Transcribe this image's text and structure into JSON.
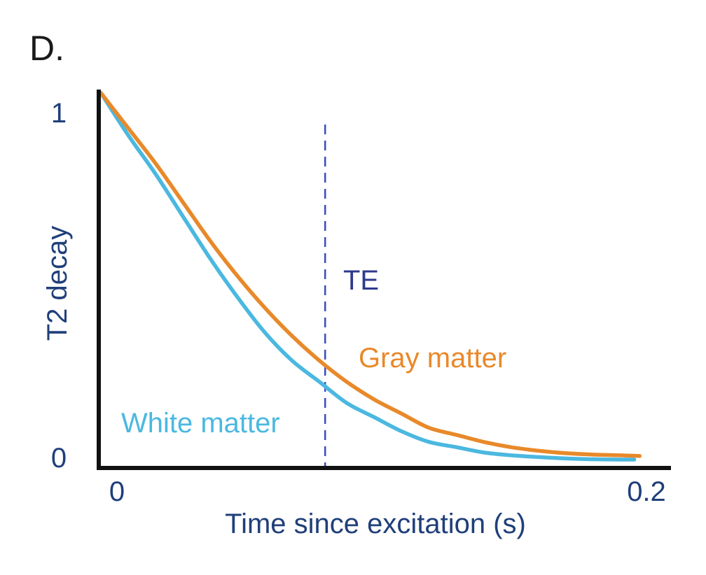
{
  "chart_data": {
    "panel_label": "D.",
    "type": "line",
    "title": "",
    "xlabel": "Time since excitation (s)",
    "ylabel": "T2 decay",
    "xlim": [
      0,
      0.2
    ],
    "ylim": [
      0,
      1
    ],
    "x_ticks": [
      {
        "value": 0,
        "label": "0"
      },
      {
        "value": 0.2,
        "label": "0.2"
      }
    ],
    "y_ticks": [
      {
        "value": 0,
        "label": "0"
      },
      {
        "value": 1,
        "label": "1"
      }
    ],
    "grid": false,
    "series": [
      {
        "name": "White matter",
        "color": "#4bb8e0",
        "x": [
          0,
          0.01,
          0.02,
          0.03,
          0.04,
          0.05,
          0.06,
          0.07,
          0.08,
          0.09,
          0.1,
          0.11,
          0.12,
          0.13,
          0.14,
          0.15,
          0.16,
          0.17,
          0.18,
          0.19,
          0.195
        ],
        "y": [
          1.05,
          0.93,
          0.82,
          0.7,
          0.58,
          0.47,
          0.37,
          0.29,
          0.23,
          0.17,
          0.13,
          0.09,
          0.06,
          0.045,
          0.03,
          0.022,
          0.017,
          0.013,
          0.011,
          0.01,
          0.01
        ]
      },
      {
        "name": "Gray matter",
        "color": "#e8892a",
        "x": [
          0,
          0.01,
          0.02,
          0.03,
          0.04,
          0.05,
          0.06,
          0.07,
          0.08,
          0.09,
          0.1,
          0.11,
          0.12,
          0.13,
          0.14,
          0.15,
          0.16,
          0.17,
          0.18,
          0.19,
          0.197
        ],
        "y": [
          1.05,
          0.95,
          0.85,
          0.74,
          0.63,
          0.53,
          0.44,
          0.36,
          0.29,
          0.23,
          0.18,
          0.14,
          0.1,
          0.08,
          0.06,
          0.045,
          0.035,
          0.028,
          0.024,
          0.022,
          0.02
        ]
      }
    ],
    "annotations": [
      {
        "type": "vline",
        "x": 0.082,
        "label": "TE",
        "color": "#3a4cc0",
        "style": "dashed"
      }
    ]
  }
}
